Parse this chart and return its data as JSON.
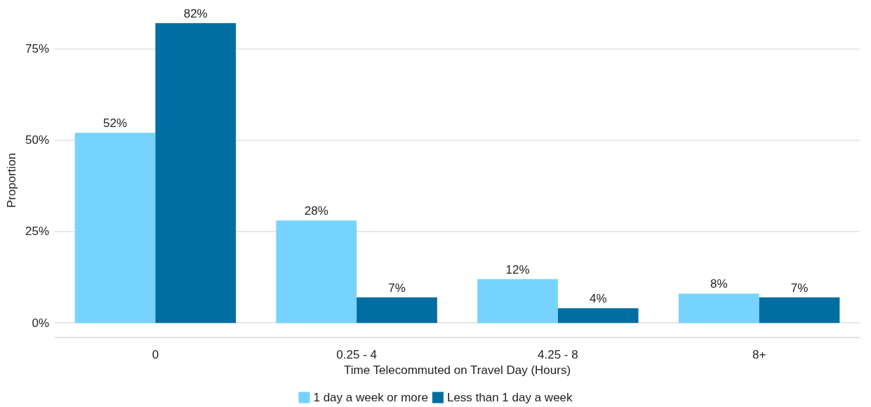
{
  "chart_data": {
    "type": "bar",
    "xlabel": "Time Telecommuted on Travel Day (Hours)",
    "ylabel": "Proportion",
    "categories": [
      "0",
      "0.25 - 4",
      "4.25 - 8",
      "8+"
    ],
    "series": [
      {
        "name": "1 day a week or more",
        "color": "#75d3fe",
        "values": [
          52,
          28,
          12,
          8
        ],
        "value_labels": [
          "52%",
          "28%",
          "12%",
          "8%"
        ]
      },
      {
        "name": "Less than 1 day a week",
        "color": "#006ea0",
        "values": [
          82,
          7,
          4,
          7
        ],
        "value_labels": [
          "82%",
          "7%",
          "4%",
          "7%"
        ]
      }
    ],
    "ylim": [
      -4,
      82
    ],
    "yticks": [
      {
        "value": 0,
        "label": "0%"
      },
      {
        "value": 25,
        "label": "25%"
      },
      {
        "value": 50,
        "label": "50%"
      },
      {
        "value": 75,
        "label": "75%"
      }
    ],
    "grid": "y",
    "legend": "bottom"
  }
}
